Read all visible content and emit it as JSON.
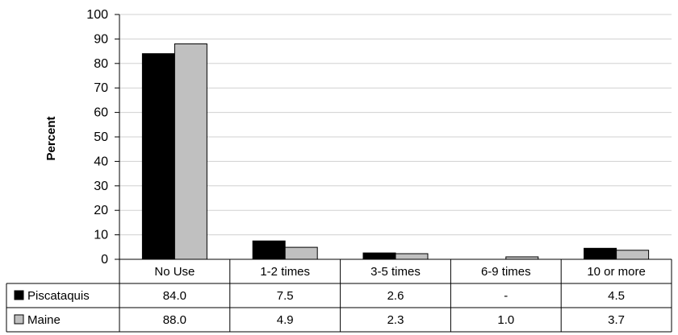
{
  "chart_data": {
    "type": "bar",
    "title": "",
    "xlabel": "",
    "ylabel": "Percent",
    "ylim": [
      0,
      100
    ],
    "yticks": [
      0,
      10,
      20,
      30,
      40,
      50,
      60,
      70,
      80,
      90,
      100
    ],
    "grid": true,
    "legend": "data-table-left",
    "categories": [
      "No Use",
      "1-2 times",
      "3-5 times",
      "6-9 times",
      "10 or more"
    ],
    "series": [
      {
        "name": "Piscataquis",
        "color": "#000000",
        "values": [
          84.0,
          7.5,
          2.6,
          null,
          4.5
        ],
        "labels": [
          "84.0",
          "7.5",
          "2.6",
          "-",
          "4.5"
        ]
      },
      {
        "name": "Maine",
        "color": "#c0c0c0",
        "values": [
          88.0,
          4.9,
          2.3,
          1.0,
          3.7
        ],
        "labels": [
          "88.0",
          "4.9",
          "2.3",
          "1.0",
          "3.7"
        ]
      }
    ]
  }
}
